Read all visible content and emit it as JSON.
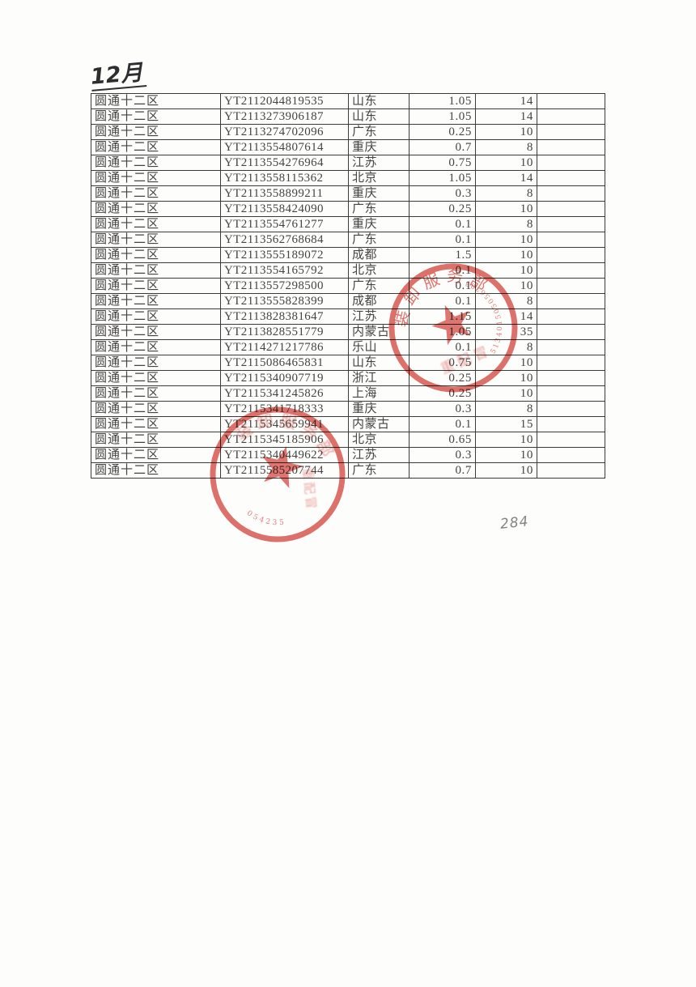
{
  "annotations": {
    "month_note": "12月",
    "count_note": "284"
  },
  "table": {
    "rows": [
      {
        "company": "圆通十二区",
        "tracking_no": "YT2112044819535",
        "destination": "山东",
        "weight": "1.05",
        "fee": "14",
        "extra": ""
      },
      {
        "company": "圆通十二区",
        "tracking_no": "YT2113273906187",
        "destination": "山东",
        "weight": "1.05",
        "fee": "14",
        "extra": ""
      },
      {
        "company": "圆通十二区",
        "tracking_no": "YT2113274702096",
        "destination": "广东",
        "weight": "0.25",
        "fee": "10",
        "extra": ""
      },
      {
        "company": "圆通十二区",
        "tracking_no": "YT2113554807614",
        "destination": "重庆",
        "weight": "0.7",
        "fee": "8",
        "extra": ""
      },
      {
        "company": "圆通十二区",
        "tracking_no": "YT2113554276964",
        "destination": "江苏",
        "weight": "0.75",
        "fee": "10",
        "extra": ""
      },
      {
        "company": "圆通十二区",
        "tracking_no": "YT2113558115362",
        "destination": "北京",
        "weight": "1.05",
        "fee": "14",
        "extra": ""
      },
      {
        "company": "圆通十二区",
        "tracking_no": "YT2113558899211",
        "destination": "重庆",
        "weight": "0.3",
        "fee": "8",
        "extra": ""
      },
      {
        "company": "圆通十二区",
        "tracking_no": "YT2113558424090",
        "destination": "广东",
        "weight": "0.25",
        "fee": "10",
        "extra": ""
      },
      {
        "company": "圆通十二区",
        "tracking_no": "YT2113554761277",
        "destination": "重庆",
        "weight": "0.1",
        "fee": "8",
        "extra": ""
      },
      {
        "company": "圆通十二区",
        "tracking_no": "YT2113562768684",
        "destination": "广东",
        "weight": "0.1",
        "fee": "10",
        "extra": ""
      },
      {
        "company": "圆通十二区",
        "tracking_no": "YT2113555189072",
        "destination": "成都",
        "weight": "1.5",
        "fee": "10",
        "extra": ""
      },
      {
        "company": "圆通十二区",
        "tracking_no": "YT2113554165792",
        "destination": "北京",
        "weight": "0.1",
        "fee": "10",
        "extra": ""
      },
      {
        "company": "圆通十二区",
        "tracking_no": "YT2113557298500",
        "destination": "广东",
        "weight": "0.1",
        "fee": "10",
        "extra": ""
      },
      {
        "company": "圆通十二区",
        "tracking_no": "YT2113555828399",
        "destination": "成都",
        "weight": "0.1",
        "fee": "8",
        "extra": ""
      },
      {
        "company": "圆通十二区",
        "tracking_no": "YT2113828381647",
        "destination": "江苏",
        "weight": "1.15",
        "fee": "14",
        "extra": ""
      },
      {
        "company": "圆通十二区",
        "tracking_no": "YT2113828551779",
        "destination": "内蒙古",
        "weight": "1.05",
        "fee": "35",
        "extra": ""
      },
      {
        "company": "圆通十二区",
        "tracking_no": "YT2114271217786",
        "destination": "乐山",
        "weight": "0.1",
        "fee": "8",
        "extra": ""
      },
      {
        "company": "圆通十二区",
        "tracking_no": "YT2115086465831",
        "destination": "山东",
        "weight": "0.75",
        "fee": "10",
        "extra": ""
      },
      {
        "company": "圆通十二区",
        "tracking_no": "YT2115340907719",
        "destination": "浙江",
        "weight": "0.25",
        "fee": "10",
        "extra": ""
      },
      {
        "company": "圆通十二区",
        "tracking_no": "YT2115341245826",
        "destination": "上海",
        "weight": "0.25",
        "fee": "10",
        "extra": ""
      },
      {
        "company": "圆通十二区",
        "tracking_no": "YT2115341718333",
        "destination": "重庆",
        "weight": "0.3",
        "fee": "8",
        "extra": ""
      },
      {
        "company": "圆通十二区",
        "tracking_no": "YT2115345659941",
        "destination": "内蒙古",
        "weight": "0.1",
        "fee": "15",
        "extra": ""
      },
      {
        "company": "圆通十二区",
        "tracking_no": "YT2115345185906",
        "destination": "北京",
        "weight": "0.65",
        "fee": "10",
        "extra": ""
      },
      {
        "company": "圆通十二区",
        "tracking_no": "YT2115340449622",
        "destination": "江苏",
        "weight": "0.3",
        "fee": "10",
        "extra": ""
      },
      {
        "company": "圆通十二区",
        "tracking_no": "YT2115585207744",
        "destination": "广东",
        "weight": "0.7",
        "fee": "10",
        "extra": ""
      }
    ]
  },
  "stamps": {
    "color": "#d6504b",
    "upper": {
      "arc_text": "装卸服务部",
      "serial": "513401505056783",
      "inner_text": "重配冒"
    },
    "lower": {
      "arc_text": "装卸服务部",
      "serial": "054235",
      "inner_text": "重配冒"
    }
  }
}
